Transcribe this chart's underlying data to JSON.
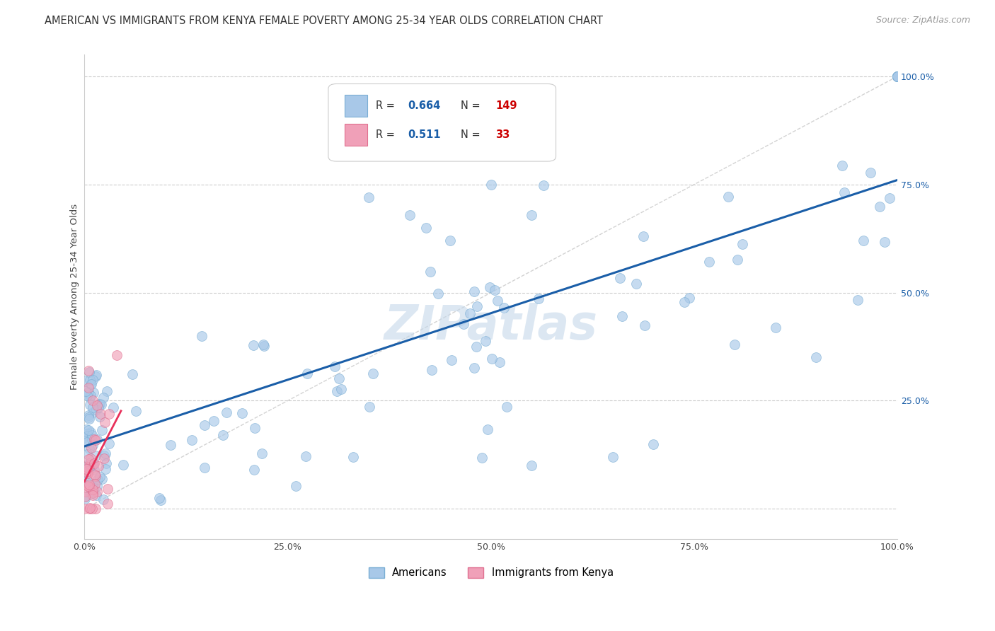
{
  "title": "AMERICAN VS IMMIGRANTS FROM KENYA FEMALE POVERTY AMONG 25-34 YEAR OLDS CORRELATION CHART",
  "source": "Source: ZipAtlas.com",
  "ylabel": "Female Poverty Among 25-34 Year Olds",
  "watermark": "ZIPatlas",
  "americans": {
    "R": 0.664,
    "N": 149,
    "color": "#a8c8e8",
    "edge_color": "#7aaed4",
    "line_color": "#1a5ea8"
  },
  "kenya": {
    "R": 0.511,
    "N": 33,
    "color": "#f0a0b8",
    "edge_color": "#e07090",
    "line_color": "#e8305a"
  },
  "xlim": [
    0,
    1.0
  ],
  "ylim": [
    -0.07,
    1.05
  ],
  "bg_color": "#ffffff",
  "grid_color": "#cccccc",
  "title_fontsize": 10.5,
  "source_fontsize": 9,
  "axis_label_fontsize": 9.5,
  "tick_fontsize": 9,
  "watermark_color": "#c5d8ea",
  "watermark_fontsize": 48,
  "legend_R_color": "#1a5ea8",
  "legend_N_color": "#cc0000",
  "x_ticks": [
    0.0,
    0.25,
    0.5,
    0.75,
    1.0
  ],
  "x_tick_labels": [
    "0.0%",
    "25.0%",
    "50.0%",
    "75.0%",
    "100.0%"
  ],
  "y_ticks": [
    0.0,
    0.25,
    0.5,
    0.75,
    1.0
  ],
  "y_tick_labels": [
    "",
    "25.0%",
    "50.0%",
    "75.0%",
    "100.0%"
  ]
}
